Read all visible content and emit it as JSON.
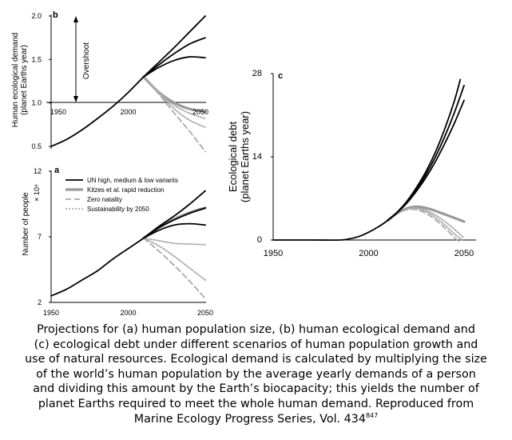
{
  "colors": {
    "black": "#000000",
    "kitzes": "#999999",
    "zero": "#aaaaaa",
    "sust": "#aaaaaa"
  },
  "caption": {
    "line1": "Projections for (a) human population size, (b) human ecological demand and",
    "line2": "(c) ecological debt under different scenarios of human population growth and",
    "line3": "use of natural resources. Ecological demand is calculated by multiplying the size",
    "line4": "of the world’s human population by the average yearly demands of a person",
    "line5": "and dividing this amount by the Earth’s biocapacity; this yields the number of",
    "line6": "planet Earths required to meet the whole human demand. Reproduced from",
    "line7": "Marine Ecology Progress Series, Vol. 434",
    "ref": "847"
  },
  "chart_data": [
    {
      "panel": "b",
      "type": "line",
      "ylabel_1": "Human ecological demand",
      "ylabel_2": "(planet Earths year)",
      "annotation": "Overshoot",
      "xlim": [
        1950,
        2050
      ],
      "ylim": [
        0.5,
        2.0
      ],
      "xticks": [
        "1950",
        "2000",
        "2050"
      ],
      "yticks": [
        "0.5",
        "1.0",
        "1.5",
        "2.0"
      ],
      "reference_line_y": 1.0,
      "series": [
        {
          "style": "un",
          "x": [
            1950,
            1960,
            1970,
            1980,
            1990,
            2000,
            2010,
            2020,
            2030,
            2040,
            2050
          ],
          "y": [
            0.5,
            0.58,
            0.69,
            0.82,
            0.96,
            1.12,
            1.3,
            1.47,
            1.64,
            1.82,
            2.0
          ]
        },
        {
          "style": "un",
          "x": [
            2010,
            2020,
            2030,
            2040,
            2050
          ],
          "y": [
            1.3,
            1.44,
            1.57,
            1.68,
            1.75
          ]
        },
        {
          "style": "un",
          "x": [
            2010,
            2020,
            2030,
            2040,
            2050
          ],
          "y": [
            1.3,
            1.41,
            1.49,
            1.53,
            1.52
          ]
        },
        {
          "style": "kitzes",
          "x": [
            2010,
            2020,
            2030,
            2040,
            2050
          ],
          "y": [
            1.3,
            1.12,
            1.0,
            0.93,
            0.9
          ]
        },
        {
          "style": "sust",
          "x": [
            2010,
            2020,
            2030,
            2040,
            2050
          ],
          "y": [
            1.3,
            1.12,
            0.97,
            0.88,
            0.82
          ]
        },
        {
          "style": "sust",
          "x": [
            2010,
            2020,
            2030,
            2040,
            2050
          ],
          "y": [
            1.3,
            1.11,
            0.93,
            0.8,
            0.72
          ]
        },
        {
          "style": "zero",
          "x": [
            2010,
            2020,
            2030,
            2040,
            2050
          ],
          "y": [
            1.3,
            1.1,
            0.88,
            0.67,
            0.44
          ]
        }
      ]
    },
    {
      "panel": "a",
      "type": "line",
      "ylabel": "Number of people",
      "yunit": "× 10⁹",
      "xlim": [
        1950,
        2050
      ],
      "ylim": [
        2,
        12
      ],
      "xticks": [
        "1950",
        "2000",
        "2050"
      ],
      "yticks": [
        "2",
        "7",
        "12"
      ],
      "legend": [
        {
          "style": "un",
          "label": "UN high, medium & low variants"
        },
        {
          "style": "kitzes",
          "label": "Kitzes et al. rapid reduction"
        },
        {
          "style": "zero",
          "label": "Zero natality"
        },
        {
          "style": "sust",
          "label": "Sustainability by 2050"
        }
      ],
      "series": [
        {
          "style": "un",
          "x": [
            1950,
            1960,
            1970,
            1980,
            1990,
            2000,
            2010,
            2020,
            2030,
            2040,
            2050
          ],
          "y": [
            2.5,
            3.0,
            3.7,
            4.4,
            5.3,
            6.1,
            6.9,
            7.8,
            8.6,
            9.5,
            10.5
          ]
        },
        {
          "style": "un",
          "x": [
            2010,
            2020,
            2030,
            2040,
            2050
          ],
          "y": [
            6.9,
            7.7,
            8.3,
            8.8,
            9.2
          ]
        },
        {
          "style": "un",
          "x": [
            2010,
            2020,
            2030,
            2040,
            2050
          ],
          "y": [
            6.9,
            7.5,
            7.9,
            8.0,
            7.9
          ]
        },
        {
          "style": "kitzes",
          "x": [
            2010,
            2020,
            2030,
            2040,
            2050
          ],
          "y": [
            6.9,
            7.7,
            8.35,
            8.85,
            9.2
          ]
        },
        {
          "style": "sust",
          "x": [
            2010,
            2020,
            2030,
            2040,
            2050
          ],
          "y": [
            6.9,
            6.7,
            6.5,
            6.45,
            6.4
          ]
        },
        {
          "style": "sust",
          "x": [
            2010,
            2020,
            2030,
            2040,
            2050
          ],
          "y": [
            6.9,
            6.3,
            5.5,
            4.6,
            3.7
          ]
        },
        {
          "style": "zero",
          "x": [
            2010,
            2020,
            2030,
            2040,
            2050
          ],
          "y": [
            6.9,
            5.9,
            4.8,
            3.6,
            2.3
          ]
        }
      ]
    },
    {
      "panel": "c",
      "type": "line",
      "ylabel_1": "Ecological debt",
      "ylabel_2": "(planet Earths year)",
      "xlim": [
        1950,
        2050
      ],
      "ylim": [
        0,
        28
      ],
      "xticks": [
        "1950",
        "2000",
        "2050"
      ],
      "yticks": [
        "0",
        "14",
        "28"
      ],
      "series": [
        {
          "style": "un",
          "x": [
            1950,
            1970,
            1985,
            1990,
            1995,
            2000,
            2005,
            2010,
            2015,
            2020,
            2025,
            2030,
            2035,
            2040,
            2045,
            2050
          ],
          "y": [
            0,
            0,
            0,
            0.2,
            0.6,
            1.3,
            2.2,
            3.3,
            4.7,
            6.4,
            8.5,
            11,
            14,
            17.5,
            21.5,
            26
          ]
        },
        {
          "style": "un",
          "x": [
            2010,
            2015,
            2020,
            2025,
            2030,
            2035,
            2040,
            2045,
            2050
          ],
          "y": [
            3.3,
            4.6,
            6.2,
            8.2,
            10.5,
            13.2,
            16.3,
            19.7,
            23.5
          ]
        },
        {
          "style": "un",
          "x": [
            2010,
            2015,
            2020,
            2025,
            2030,
            2035,
            2040,
            2045,
            2048
          ],
          "y": [
            3.3,
            4.7,
            6.5,
            8.8,
            11.5,
            14.8,
            18.8,
            23.5,
            27
          ]
        },
        {
          "style": "kitzes",
          "x": [
            2010,
            2015,
            2020,
            2025,
            2030,
            2035,
            2040,
            2045,
            2050
          ],
          "y": [
            3.3,
            4.5,
            5.3,
            5.6,
            5.4,
            4.9,
            4.3,
            3.7,
            3.1
          ]
        },
        {
          "style": "sust",
          "x": [
            2010,
            2015,
            2020,
            2025,
            2030,
            2035,
            2040,
            2045,
            2050
          ],
          "y": [
            3.3,
            4.5,
            5.2,
            5.4,
            5.0,
            4.2,
            3.1,
            1.8,
            0.3
          ]
        },
        {
          "style": "sust",
          "x": [
            2010,
            2015,
            2020,
            2025,
            2030,
            2035,
            2040,
            2045,
            2049
          ],
          "y": [
            3.3,
            4.5,
            5.2,
            5.3,
            4.8,
            3.8,
            2.5,
            1.0,
            0
          ]
        },
        {
          "style": "zero",
          "x": [
            2010,
            2015,
            2020,
            2025,
            2030,
            2035,
            2040,
            2045,
            2048
          ],
          "y": [
            3.3,
            4.4,
            5.1,
            5.1,
            4.5,
            3.4,
            2.0,
            0.4,
            -0.4
          ]
        }
      ]
    }
  ]
}
